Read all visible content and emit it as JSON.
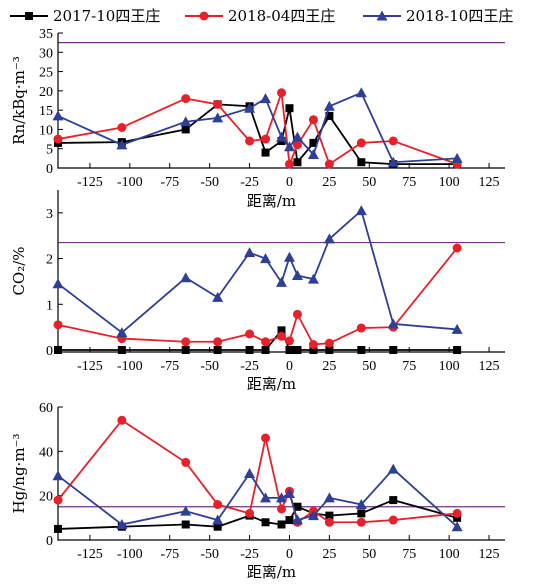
{
  "legend": {
    "entries": [
      {
        "name": "2017-10四王庄",
        "color": "#000000",
        "marker": "square"
      },
      {
        "name": "2018-04四王庄",
        "color": "#e8202a",
        "marker": "circle"
      },
      {
        "name": "2018-10四王庄",
        "color": "#2e3f98",
        "marker": "triangle"
      }
    ]
  },
  "threshold_color": "#7a2e8e",
  "chart_data": [
    {
      "type": "line",
      "xlabel": "距离/m",
      "ylabel": "Rn/kBq·m⁻³",
      "xlim": [
        -145,
        135
      ],
      "ylim": [
        0,
        35
      ],
      "xticks": [
        -125,
        -100,
        -75,
        -50,
        -25,
        0,
        25,
        50,
        75,
        100,
        125
      ],
      "yticks": [
        0,
        5,
        10,
        15,
        20,
        25,
        30,
        35
      ],
      "threshold": 32.5,
      "series": [
        {
          "name": "2017-10四王庄",
          "x": [
            -145,
            -105,
            -65,
            -45,
            -25,
            -15,
            -5,
            0,
            5,
            15,
            25,
            45,
            65,
            105
          ],
          "y": [
            6.5,
            6.7,
            10,
            16.5,
            16,
            4,
            7,
            15.5,
            1.5,
            6.5,
            13.5,
            1.5,
            1,
            1
          ]
        },
        {
          "name": "2018-04四王庄",
          "x": [
            -145,
            -105,
            -65,
            -45,
            -25,
            -15,
            -5,
            0,
            5,
            15,
            25,
            45,
            65,
            105
          ],
          "y": [
            7.5,
            10.5,
            18,
            16.5,
            7,
            7.5,
            19.5,
            1,
            6,
            12.5,
            1,
            6.5,
            7,
            1
          ]
        },
        {
          "name": "2018-10四王庄",
          "x": [
            -145,
            -105,
            -65,
            -45,
            -25,
            -15,
            -5,
            0,
            5,
            15,
            25,
            45,
            65,
            105
          ],
          "y": [
            13.5,
            6,
            12,
            13,
            15.5,
            18,
            8,
            5.5,
            8,
            3.5,
            16,
            19.5,
            1.5,
            2.5
          ]
        }
      ]
    },
    {
      "type": "line",
      "xlabel": "距离/m",
      "ylabel": "CO₂/%",
      "xlim": [
        -145,
        135
      ],
      "ylim": [
        0,
        3.5
      ],
      "xticks": [
        -125,
        -100,
        -75,
        -50,
        -25,
        0,
        25,
        50,
        75,
        100,
        125
      ],
      "yticks": [
        0,
        1,
        2,
        3
      ],
      "threshold": 2.35,
      "series": [
        {
          "name": "2017-10四王庄",
          "x": [
            -145,
            -105,
            -65,
            -45,
            -25,
            -15,
            -5,
            0,
            5,
            15,
            25,
            45,
            65,
            105
          ],
          "y": [
            0,
            0,
            0,
            0,
            0,
            0,
            0.43,
            0,
            0,
            0,
            0,
            0,
            0,
            0
          ]
        },
        {
          "name": "2018-04四王庄",
          "x": [
            -145,
            -105,
            -65,
            -45,
            -25,
            -15,
            -5,
            0,
            5,
            15,
            25,
            45,
            65,
            105
          ],
          "y": [
            0.55,
            0.25,
            0.18,
            0.18,
            0.35,
            0.18,
            0.3,
            0.2,
            0.78,
            0.12,
            0.15,
            0.48,
            0.5,
            2.23
          ]
        },
        {
          "name": "2018-10四王庄",
          "x": [
            -145,
            -105,
            -65,
            -45,
            -25,
            -15,
            -5,
            0,
            5,
            15,
            25,
            45,
            65,
            105
          ],
          "y": [
            1.45,
            0.38,
            1.58,
            1.15,
            2.13,
            2.0,
            1.48,
            2.03,
            1.63,
            1.55,
            2.43,
            3.05,
            0.57,
            0.45
          ]
        }
      ]
    },
    {
      "type": "line",
      "xlabel": "距离/m",
      "ylabel": "Hg/ng·m⁻³",
      "xlim": [
        -145,
        135
      ],
      "ylim": [
        0,
        60
      ],
      "xticks": [
        -125,
        -100,
        -75,
        -50,
        -25,
        0,
        25,
        50,
        75,
        100,
        125
      ],
      "yticks": [
        0,
        20,
        40,
        60
      ],
      "threshold": 15,
      "series": [
        {
          "name": "2017-10四王庄",
          "x": [
            -145,
            -105,
            -65,
            -45,
            -25,
            -15,
            -5,
            0,
            5,
            15,
            25,
            45,
            65,
            105
          ],
          "y": [
            5,
            6,
            7,
            6,
            11,
            8,
            7,
            9,
            15,
            12,
            11,
            12,
            18,
            10
          ]
        },
        {
          "name": "2018-04四王庄",
          "x": [
            -145,
            -105,
            -65,
            -45,
            -25,
            -15,
            -5,
            0,
            5,
            15,
            25,
            45,
            65,
            105
          ],
          "y": [
            18,
            54,
            35,
            16,
            12,
            46,
            14,
            22,
            8,
            13,
            8,
            8,
            9,
            12
          ]
        },
        {
          "name": "2018-10四王庄",
          "x": [
            -145,
            -105,
            -65,
            -45,
            -25,
            -15,
            -5,
            0,
            5,
            15,
            25,
            45,
            65,
            105
          ],
          "y": [
            29,
            7,
            13,
            9,
            30,
            19,
            19,
            21,
            9,
            11,
            19,
            16,
            32,
            6
          ]
        }
      ]
    }
  ]
}
